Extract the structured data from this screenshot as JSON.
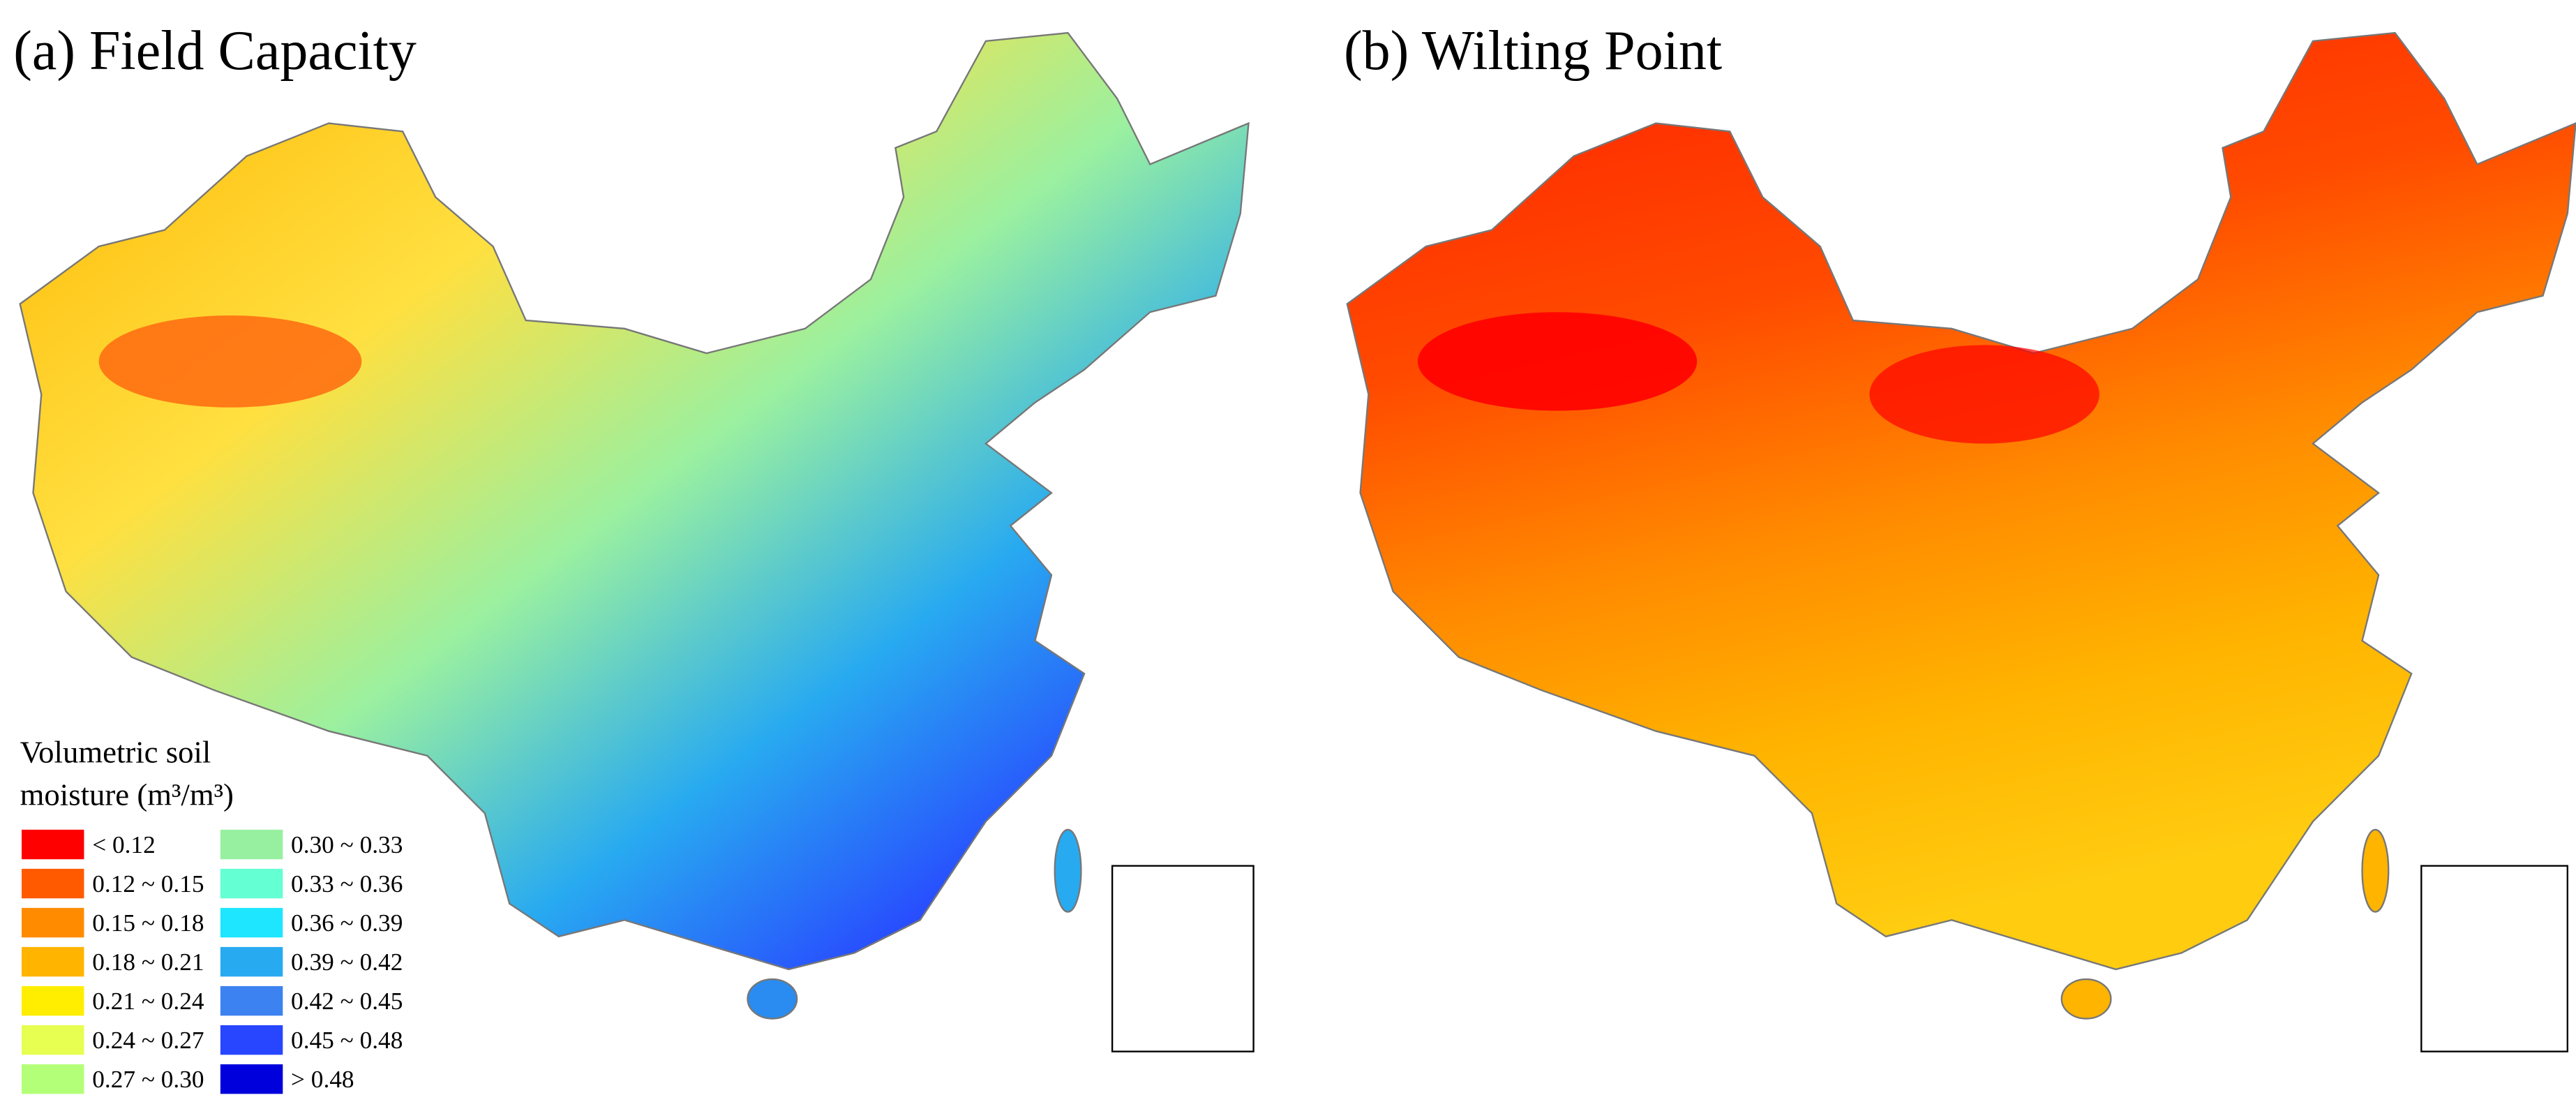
{
  "panels": [
    {
      "title": "(a) Field Capacity"
    },
    {
      "title": "(b) Wilting Point"
    }
  ],
  "legend": {
    "title_lines": [
      "Volumetric soil",
      "moisture (m³/m³)"
    ],
    "items": [
      {
        "label": "< 0.12",
        "color": "#ff0000"
      },
      {
        "label": "0.12 ~ 0.15",
        "color": "#ff5a00"
      },
      {
        "label": "0.15 ~ 0.18",
        "color": "#ff8c00"
      },
      {
        "label": "0.18 ~ 0.21",
        "color": "#ffb400"
      },
      {
        "label": "0.21 ~ 0.24",
        "color": "#ffee00"
      },
      {
        "label": "0.24 ~ 0.27",
        "color": "#e6ff50"
      },
      {
        "label": "0.27 ~ 0.30",
        "color": "#b4ff78"
      },
      {
        "label": "0.30 ~ 0.33",
        "color": "#96f0a0"
      },
      {
        "label": "0.33 ~ 0.36",
        "color": "#64ffd2"
      },
      {
        "label": "0.36 ~ 0.39",
        "color": "#1ee6ff"
      },
      {
        "label": "0.39 ~ 0.42",
        "color": "#28aaf0"
      },
      {
        "label": "0.42 ~ 0.45",
        "color": "#3c82f0"
      },
      {
        "label": "0.45 ~ 0.48",
        "color": "#2846ff"
      },
      {
        "label": "> 0.48",
        "color": "#0000dc"
      }
    ]
  }
}
